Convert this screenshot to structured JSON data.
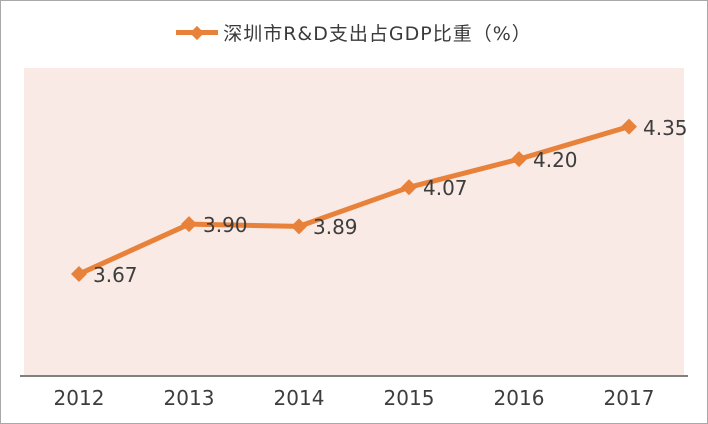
{
  "legend": {
    "label": "深圳市R&D支出占GDP比重（%）",
    "marker": "line-with-diamond-icon"
  },
  "colors": {
    "line": "#e8813a",
    "marker": "#e8813a",
    "plot_bg": "#f9eae5",
    "axis": "#808080",
    "text": "#3d3d3d",
    "border": "#a8a8a8"
  },
  "chart_data": {
    "type": "line",
    "title": "深圳市R&D支出占GDP比重（%）",
    "categories": [
      "2012",
      "2013",
      "2014",
      "2015",
      "2016",
      "2017"
    ],
    "series": [
      {
        "name": "深圳市R&D支出占GDP比重（%）",
        "values": [
          3.67,
          3.9,
          3.89,
          4.07,
          4.2,
          4.35
        ],
        "data_labels": [
          "3.67",
          "3.90",
          "3.89",
          "4.07",
          "4.20",
          "4.35"
        ]
      }
    ],
    "xlabel": "",
    "ylabel": "",
    "ylim": [
      3.2,
      4.62
    ],
    "grid": false,
    "legend_position": "top-center",
    "marker_shape": "diamond",
    "y_axis_visible": false
  }
}
